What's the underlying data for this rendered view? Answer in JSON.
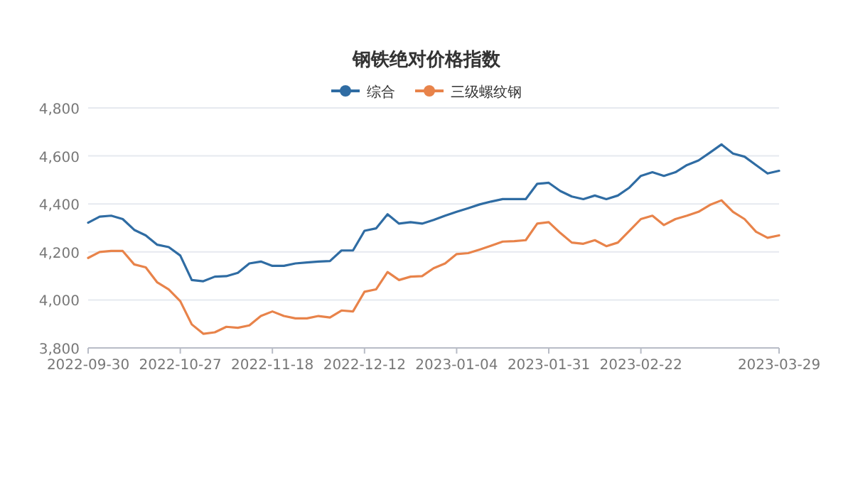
{
  "chart_data": {
    "type": "line",
    "title": "钢铁绝对价格指数",
    "categories": [
      "2022-09-30",
      null,
      null,
      null,
      null,
      null,
      null,
      null,
      "2022-10-27",
      null,
      null,
      null,
      null,
      null,
      null,
      null,
      "2022-11-18",
      null,
      null,
      null,
      null,
      null,
      null,
      null,
      "2022-12-12",
      null,
      null,
      null,
      null,
      null,
      null,
      null,
      "2023-01-04",
      null,
      null,
      null,
      null,
      null,
      null,
      null,
      "2023-01-31",
      null,
      null,
      null,
      null,
      null,
      null,
      null,
      "2023-02-22",
      null,
      null,
      null,
      null,
      null,
      null,
      null,
      null,
      null,
      null,
      null,
      "2023-03-29"
    ],
    "series": [
      {
        "name": "综合",
        "color": "#2f6ca3",
        "values": [
          4322,
          4347,
          4351,
          4337,
          4292,
          4269,
          4230,
          4220,
          4185,
          4083,
          4078,
          4097,
          4099,
          4113,
          4152,
          4160,
          4142,
          4142,
          4152,
          4156,
          4160,
          4162,
          4206,
          4206,
          4288,
          4298,
          4357,
          4318,
          4324,
          4318,
          4333,
          4351,
          4367,
          4382,
          4398,
          4410,
          4420,
          4420,
          4420,
          4484,
          4488,
          4454,
          4431,
          4420,
          4435,
          4420,
          4435,
          4468,
          4517,
          4532,
          4517,
          4532,
          4562,
          4581,
          4614,
          4648,
          4610,
          4597,
          4562,
          4527,
          4538
        ]
      },
      {
        "name": "三级螺纹钢",
        "color": "#e8834a",
        "values": [
          4175,
          4200,
          4204,
          4204,
          4148,
          4136,
          4073,
          4044,
          3995,
          3898,
          3859,
          3865,
          3888,
          3884,
          3894,
          3933,
          3952,
          3933,
          3923,
          3923,
          3933,
          3927,
          3956,
          3952,
          4034,
          4044,
          4116,
          4083,
          4097,
          4099,
          4132,
          4152,
          4191,
          4195,
          4210,
          4226,
          4243,
          4245,
          4249,
          4318,
          4324,
          4279,
          4239,
          4234,
          4249,
          4224,
          4239,
          4288,
          4337,
          4351,
          4312,
          4337,
          4351,
          4367,
          4396,
          4415,
          4367,
          4337,
          4284,
          4259,
          4269
        ]
      }
    ],
    "ylim": [
      3800,
      4800
    ],
    "yticks": [
      {
        "value": 3800,
        "label": "3,800"
      },
      {
        "value": 4000,
        "label": "4,000"
      },
      {
        "value": 4200,
        "label": "4,200"
      },
      {
        "value": 4400,
        "label": "4,400"
      },
      {
        "value": 4600,
        "label": "4,600"
      },
      {
        "value": 4800,
        "label": "4,800"
      }
    ],
    "grid": "y",
    "legend": "top"
  }
}
